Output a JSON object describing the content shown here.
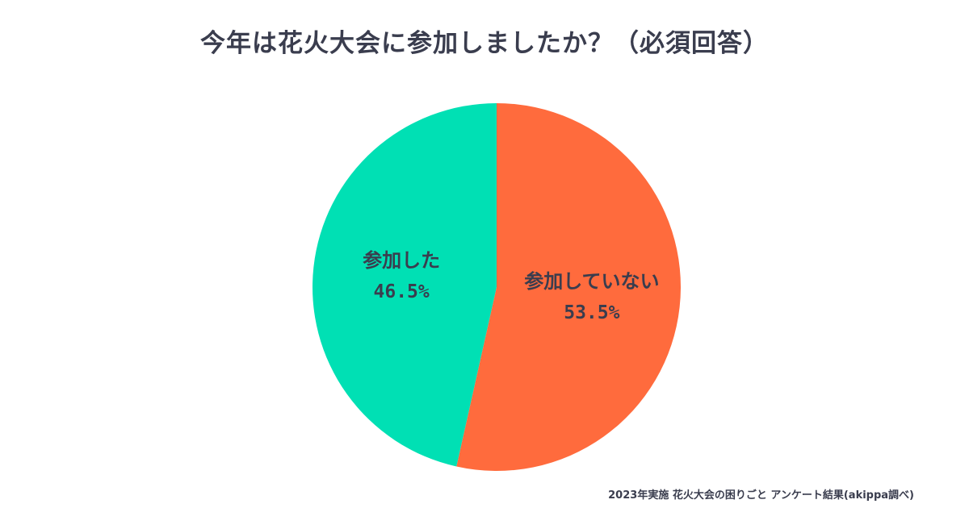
{
  "chart_data": {
    "type": "pie",
    "title": "今年は花火大会に参加しましたか？（必須回答）",
    "slices": [
      {
        "label": "参加していない",
        "value": 53.5,
        "value_label": "53.5%",
        "color": "#ff6b3d"
      },
      {
        "label": "参加した",
        "value": 46.5,
        "value_label": "46.5%",
        "color": "#00e0b4"
      }
    ],
    "start_angle": "12 o'clock",
    "direction": "clockwise"
  },
  "footnote": "2023年実施 花火大会の困りごと アンケート結果(akippa調べ)"
}
